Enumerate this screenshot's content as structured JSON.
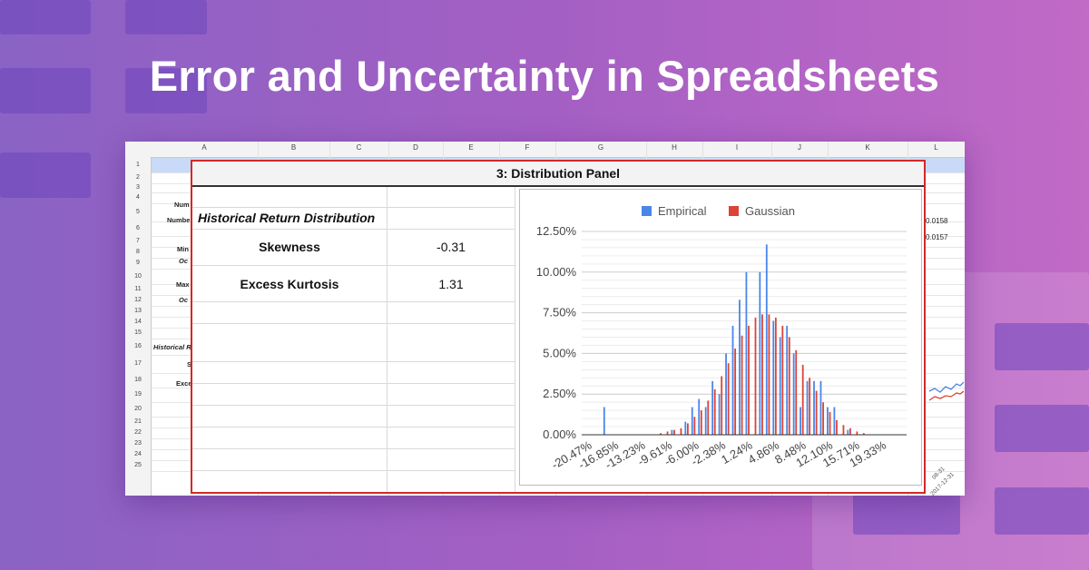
{
  "title": "Error and Uncertainty in Spreadsheets",
  "sheet": {
    "columns": [
      "A",
      "B",
      "C",
      "D",
      "E",
      "F",
      "G",
      "H",
      "I",
      "J",
      "K",
      "L"
    ],
    "rows": [
      "1",
      "2",
      "3",
      "4",
      "5",
      "6",
      "7",
      "8",
      "9",
      "10",
      "11",
      "12",
      "13",
      "14",
      "15",
      "16",
      "17",
      "18",
      "19",
      "20",
      "21",
      "22",
      "23",
      "24",
      "25"
    ],
    "left_cells": [
      "Num",
      "Numbe",
      "Min",
      "Oc",
      "Max",
      "Oc",
      "Historical R",
      "S",
      "Exce"
    ],
    "right_cells": [
      "0.0158",
      "0.0157"
    ],
    "axis_fragments": [
      "08-31",
      "2017-12-31"
    ],
    "accent_color": "#c9daf8"
  },
  "panel": {
    "title": "3: Distribution Panel",
    "section_title": "Historical Return Distribution",
    "stats": [
      {
        "label": "Skewness",
        "value": "-0.31"
      },
      {
        "label": "Excess Kurtosis",
        "value": "1.31"
      }
    ],
    "border_color": "#d42828"
  },
  "chart_data": {
    "type": "bar",
    "legend_position": "top",
    "series": [
      {
        "name": "Empirical",
        "color": "#4a86e8",
        "values": [
          0,
          0,
          0,
          0.017,
          0,
          0,
          0,
          0,
          0,
          0,
          0,
          0,
          0,
          0.003,
          0,
          0.008,
          0.017,
          0.022,
          0.017,
          0.033,
          0.025,
          0.05,
          0.067,
          0.083,
          0.1,
          0,
          0.1,
          0.117,
          0.07,
          0.06,
          0.067,
          0.05,
          0.017,
          0.033,
          0.033,
          0.033,
          0.017,
          0.017,
          0,
          0.003,
          0,
          0,
          0,
          0,
          0,
          0,
          0,
          0
        ]
      },
      {
        "name": "Gaussian",
        "color": "#db4437",
        "values": [
          0,
          0,
          0,
          0,
          0,
          0,
          0,
          0,
          0,
          0,
          0,
          0.001,
          0.002,
          0.003,
          0.004,
          0.007,
          0.011,
          0.015,
          0.021,
          0.028,
          0.036,
          0.044,
          0.053,
          0.061,
          0.067,
          0.072,
          0.074,
          0.074,
          0.072,
          0.067,
          0.06,
          0.052,
          0.043,
          0.035,
          0.027,
          0.02,
          0.014,
          0.009,
          0.006,
          0.004,
          0.002,
          0.001,
          0,
          0,
          0,
          0,
          0,
          0
        ]
      }
    ],
    "x_tick_labels": [
      "-20.47%",
      "-16.85%",
      "-13.23%",
      "-9.61%",
      "-6.00%",
      "-2.38%",
      "1.24%",
      "4.86%",
      "8.48%",
      "12.10%",
      "15.71%",
      "19.33%"
    ],
    "y_tick_labels": [
      "0.00%",
      "2.50%",
      "5.00%",
      "7.50%",
      "10.00%",
      "12.50%"
    ],
    "ylim": [
      0,
      0.125
    ],
    "grid": true
  }
}
